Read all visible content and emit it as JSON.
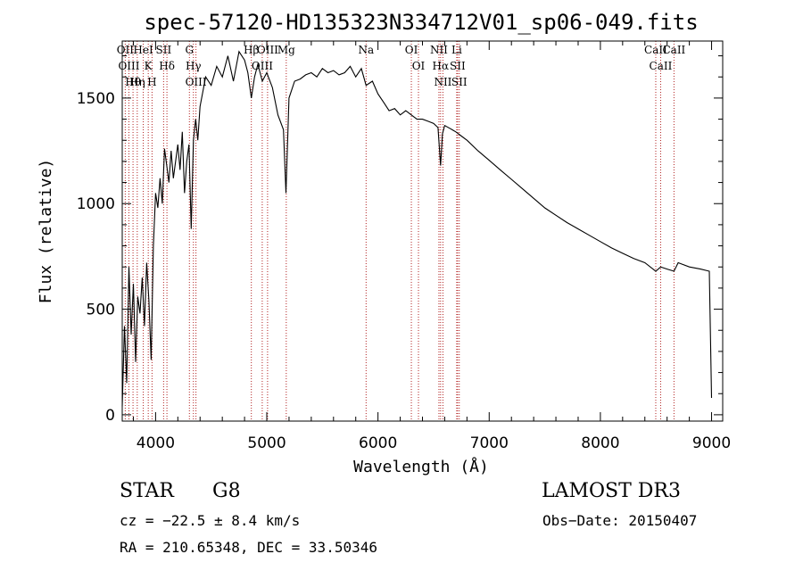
{
  "chart_data": {
    "type": "line",
    "title": "spec-57120-HD135323N334712V01_sp06-049.fits",
    "xlabel": "Wavelength (Å)",
    "ylabel": "Flux (relative)",
    "xlim": [
      3700,
      9100
    ],
    "ylim": [
      -30,
      1770
    ],
    "xticks": [
      4000,
      5000,
      6000,
      7000,
      8000,
      9000
    ],
    "yticks": [
      0,
      500,
      1000,
      1500
    ],
    "grid": false,
    "series": [
      {
        "name": "flux",
        "x": [
          3700,
          3720,
          3740,
          3760,
          3780,
          3800,
          3820,
          3840,
          3860,
          3880,
          3900,
          3920,
          3940,
          3960,
          3980,
          4000,
          4020,
          4040,
          4060,
          4080,
          4100,
          4120,
          4140,
          4160,
          4180,
          4200,
          4220,
          4240,
          4260,
          4280,
          4300,
          4320,
          4340,
          4360,
          4380,
          4400,
          4450,
          4500,
          4550,
          4600,
          4650,
          4700,
          4750,
          4800,
          4830,
          4861,
          4890,
          4920,
          4960,
          5000,
          5050,
          5100,
          5150,
          5172,
          5200,
          5250,
          5300,
          5350,
          5400,
          5450,
          5500,
          5550,
          5600,
          5650,
          5700,
          5750,
          5800,
          5850,
          5893,
          5950,
          6000,
          6050,
          6100,
          6150,
          6200,
          6250,
          6300,
          6350,
          6400,
          6450,
          6500,
          6540,
          6563,
          6580,
          6600,
          6650,
          6700,
          6750,
          6800,
          6900,
          7000,
          7100,
          7200,
          7300,
          7400,
          7500,
          7600,
          7700,
          7800,
          7900,
          8000,
          8100,
          8200,
          8300,
          8400,
          8498,
          8542,
          8600,
          8662,
          8700,
          8800,
          8900,
          8980,
          9000
        ],
        "values": [
          40,
          420,
          150,
          700,
          380,
          620,
          250,
          560,
          480,
          650,
          420,
          720,
          540,
          260,
          800,
          1050,
          980,
          1120,
          1000,
          1260,
          1180,
          1100,
          1250,
          1120,
          1200,
          1280,
          1160,
          1340,
          1050,
          1200,
          1280,
          880,
          1300,
          1400,
          1300,
          1460,
          1600,
          1560,
          1650,
          1600,
          1700,
          1580,
          1720,
          1680,
          1620,
          1500,
          1600,
          1660,
          1580,
          1620,
          1550,
          1420,
          1350,
          1050,
          1500,
          1580,
          1590,
          1610,
          1620,
          1600,
          1640,
          1620,
          1630,
          1610,
          1620,
          1650,
          1600,
          1640,
          1560,
          1580,
          1520,
          1480,
          1440,
          1450,
          1420,
          1440,
          1420,
          1400,
          1400,
          1390,
          1380,
          1360,
          1180,
          1330,
          1370,
          1355,
          1340,
          1320,
          1300,
          1250,
          1205,
          1160,
          1115,
          1070,
          1025,
          980,
          945,
          910,
          880,
          850,
          820,
          790,
          765,
          740,
          720,
          680,
          700,
          690,
          680,
          720,
          700,
          690,
          680,
          80
        ]
      }
    ],
    "lines": [
      {
        "label": "Hθ",
        "x": 3797
      },
      {
        "label": "OII",
        "x": 3727
      },
      {
        "label": "OIII",
        "x": 3760
      },
      {
        "label": "K",
        "x": 3934
      },
      {
        "label": "HeI",
        "x": 3889
      },
      {
        "label": "Hη",
        "x": 3835
      },
      {
        "label": "SII",
        "x": 4072
      },
      {
        "label": "H",
        "x": 3968
      },
      {
        "label": "Hδ",
        "x": 4102
      },
      {
        "label": "OIII",
        "x": 4363
      },
      {
        "label": "Hγ",
        "x": 4340
      },
      {
        "label": "G",
        "x": 4304
      },
      {
        "label": "Hβ",
        "x": 4861
      },
      {
        "label": "OIII",
        "x": 4959
      },
      {
        "label": "OIII",
        "x": 5007
      },
      {
        "label": "Mg",
        "x": 5175
      },
      {
        "label": "Na",
        "x": 5893
      },
      {
        "label": "OI",
        "x": 6300
      },
      {
        "label": "OI",
        "x": 6364
      },
      {
        "label": "Hα",
        "x": 6563
      },
      {
        "label": "NII",
        "x": 6548
      },
      {
        "label": "NII",
        "x": 6584
      },
      {
        "label": "SII",
        "x": 6716
      },
      {
        "label": "Li",
        "x": 6708
      },
      {
        "label": "SII",
        "x": 6731
      },
      {
        "label": "CaII",
        "x": 8542
      },
      {
        "label": "CaII",
        "x": 8498
      },
      {
        "label": "CaII",
        "x": 8662
      }
    ]
  },
  "info": {
    "class": "STAR",
    "subclass": "G8",
    "survey": "LAMOST DR3",
    "cz": "cz = −22.5 ± 8.4 km/s",
    "obs_date": "Obs−Date: 20150407",
    "radec": "RA = 210.65348, DEC =  33.50346"
  },
  "colors": {
    "line": "#b22222",
    "spectrum": "#000000"
  }
}
